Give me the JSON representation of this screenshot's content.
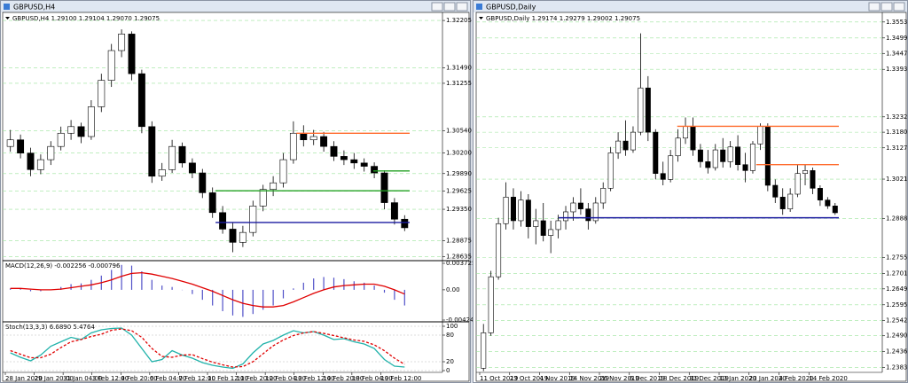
{
  "windows": [
    {
      "title": "GBPUSD,H4",
      "info": "GBPUSD,H4  1.29100 1.29104 1.29070 1.29075",
      "chart_data": {
        "type": "candlestick",
        "candles": [
          [
            1.303,
            1.3055,
            1.3022,
            1.304
          ],
          [
            1.304,
            1.3048,
            1.3012,
            1.302
          ],
          [
            1.302,
            1.3028,
            1.2985,
            1.2995
          ],
          [
            1.2995,
            1.3018,
            1.2988,
            1.301
          ],
          [
            1.301,
            1.3038,
            1.3002,
            1.303
          ],
          [
            1.303,
            1.306,
            1.3024,
            1.305
          ],
          [
            1.305,
            1.307,
            1.304,
            1.306
          ],
          [
            1.306,
            1.3066,
            1.3035,
            1.3045
          ],
          [
            1.3045,
            1.31,
            1.304,
            1.309
          ],
          [
            1.309,
            1.314,
            1.3082,
            1.313
          ],
          [
            1.313,
            1.3185,
            1.312,
            1.3175
          ],
          [
            1.3175,
            1.3207,
            1.3165,
            1.32
          ],
          [
            1.32,
            1.3204,
            1.313,
            1.314
          ],
          [
            1.314,
            1.3146,
            1.305,
            1.306
          ],
          [
            1.306,
            1.3068,
            1.2975,
            1.2985
          ],
          [
            1.2985,
            1.3005,
            1.2978,
            1.2995
          ],
          [
            1.2995,
            1.304,
            1.299,
            1.303
          ],
          [
            1.303,
            1.3036,
            1.2998,
            1.3005
          ],
          [
            1.3005,
            1.3012,
            1.2982,
            1.299
          ],
          [
            1.299,
            1.2996,
            1.2952,
            1.296
          ],
          [
            1.296,
            1.2968,
            1.2922,
            1.293
          ],
          [
            1.293,
            1.294,
            1.2898,
            1.2905
          ],
          [
            1.2905,
            1.2915,
            1.287,
            1.2885
          ],
          [
            1.2885,
            1.291,
            1.2878,
            1.29
          ],
          [
            1.29,
            1.2948,
            1.2894,
            1.294
          ],
          [
            1.294,
            1.2972,
            1.2932,
            1.2965
          ],
          [
            1.2965,
            1.2985,
            1.2955,
            1.2975
          ],
          [
            1.2975,
            1.302,
            1.2968,
            1.301
          ],
          [
            1.301,
            1.3068,
            1.3004,
            1.305
          ],
          [
            1.305,
            1.3062,
            1.303,
            1.304
          ],
          [
            1.304,
            1.3055,
            1.3032,
            1.3045
          ],
          [
            1.3045,
            1.3052,
            1.3022,
            1.303
          ],
          [
            1.303,
            1.3038,
            1.3008,
            1.3015
          ],
          [
            1.3015,
            1.3024,
            1.3002,
            1.301
          ],
          [
            1.301,
            1.302,
            1.2996,
            1.3005
          ],
          [
            1.3005,
            1.3012,
            1.2992,
            1.3
          ],
          [
            1.3,
            1.3006,
            1.2982,
            1.299
          ],
          [
            1.299,
            1.2994,
            1.2935,
            1.2945
          ],
          [
            1.2945,
            1.2952,
            1.2912,
            1.292
          ],
          [
            1.292,
            1.2926,
            1.2902,
            1.2907
          ]
        ],
        "ylim": [
          1.286,
          1.323
        ],
        "yticks": [
          1.32205,
          {
            "value": 1.3149,
            "label": "1.31490"
          },
          1.31255,
          {
            "value": 1.3054,
            "label": "1.30540"
          },
          {
            "value": 1.302,
            "label": "1.30200"
          },
          {
            "value": 1.2989,
            "label": "1.29890"
          },
          1.29625,
          {
            "value": 1.2935,
            "label": "1.29350"
          },
          1.28875,
          1.28635
        ],
        "grid": true,
        "levels": [
          {
            "value": 1.305,
            "color": "#ff6a2b"
          },
          {
            "value": 1.2993,
            "color": "#22a022"
          },
          {
            "value": 1.2963,
            "color": "#22a022"
          },
          {
            "value": 1.2915,
            "color": "#1a1aa0"
          }
        ],
        "x_labels": [
          "28 Jan 2020",
          "29 Jan 20:00",
          "31 Jan 04:00",
          "3 Feb 12:00",
          "4 Feb 20:00",
          "6 Feb 04:00",
          "7 Feb 12:00",
          "10 Feb 12:00",
          "11 Feb 20:00",
          "12 Feb 04:00",
          "13 Feb 12:00",
          "14 Feb 20:00",
          "18 Feb 04:00",
          "19 Feb 12:00"
        ],
        "indicators": [
          {
            "type": "macd",
            "label": "MACD(12,26,9) -0.002256 -0.000796",
            "color": "#5050c8",
            "signal_color": "#e00000",
            "values": [
              0.0002,
              0.0001,
              -0.0002,
              -0.0002,
              0,
              0.0004,
              0.0008,
              0.0009,
              0.0014,
              0.002,
              0.0028,
              0.0035,
              0.0034,
              0.0026,
              0.0014,
              0.0006,
              0.0004,
              0,
              -0.0006,
              -0.0014,
              -0.0022,
              -0.003,
              -0.0036,
              -0.0038,
              -0.0034,
              -0.0028,
              -0.0022,
              -0.0012,
              0.0002,
              0.001,
              0.0016,
              0.0018,
              0.0017,
              0.0015,
              0.0012,
              0.001,
              0.0006,
              -0.0004,
              -0.0014,
              -0.0022
            ],
            "signal": [
              0.0002,
              0.0002,
              0.0001,
              0,
              0,
              0.0001,
              0.0003,
              0.0005,
              0.0007,
              0.001,
              0.0014,
              0.0019,
              0.0023,
              0.0024,
              0.0022,
              0.0019,
              0.0016,
              0.0012,
              0.0008,
              0.0003,
              -0.0002,
              -0.0008,
              -0.0014,
              -0.0019,
              -0.0022,
              -0.0024,
              -0.0024,
              -0.0022,
              -0.0017,
              -0.0011,
              -0.0005,
              0,
              0.0004,
              0.0006,
              0.0007,
              0.0008,
              0.0008,
              0.0005,
              0,
              -0.0006
            ],
            "ylim": [
              -0.004249,
              0.003725
            ],
            "yticks": [
              0.003725,
              {
                "value": 0,
                "label": "0.00"
              },
              -0.004249
            ]
          },
          {
            "type": "stochastic",
            "label": "Stoch(13,3,3) 6.6890 5.4764",
            "color": "#20b2aa",
            "signal_color": "#e00000",
            "values": [
              40,
              30,
              22,
              35,
              55,
              65,
              75,
              70,
              85,
              92,
              95,
              96,
              80,
              50,
              20,
              25,
              45,
              35,
              28,
              18,
              12,
              8,
              5,
              15,
              40,
              60,
              68,
              80,
              90,
              85,
              88,
              80,
              70,
              72,
              65,
              60,
              50,
              25,
              10,
              8
            ],
            "signal": [
              45,
              37,
              29,
              29,
              37,
              52,
              65,
              70,
              77,
              82,
              91,
              94,
              90,
              75,
              50,
              32,
              30,
              35,
              36,
              27,
              19,
              13,
              8,
              9,
              20,
              38,
              56,
              69,
              79,
              85,
              88,
              84,
              79,
              74,
              69,
              66,
              58,
              45,
              28,
              14
            ],
            "ylim": [
              0,
              100
            ],
            "yticks": [
              100,
              80,
              20,
              0
            ]
          }
        ]
      }
    },
    {
      "title": "GBPUSD,Daily",
      "info": "GBPUSD,Daily  1.29174 1.29279 1.29002 1.29075",
      "chart_data": {
        "type": "candlestick",
        "candles": [
          [
            1.238,
            1.253,
            1.237,
            1.25
          ],
          [
            1.25,
            1.271,
            1.249,
            1.269
          ],
          [
            1.269,
            1.289,
            1.268,
            1.287
          ],
          [
            1.287,
            1.301,
            1.285,
            1.296
          ],
          [
            1.296,
            1.299,
            1.285,
            1.288
          ],
          [
            1.288,
            1.298,
            1.286,
            1.295
          ],
          [
            1.295,
            1.297,
            1.282,
            1.286
          ],
          [
            1.286,
            1.292,
            1.28,
            1.288
          ],
          [
            1.288,
            1.294,
            1.281,
            1.283
          ],
          [
            1.283,
            1.288,
            1.277,
            1.285
          ],
          [
            1.285,
            1.29,
            1.282,
            1.288
          ],
          [
            1.288,
            1.293,
            1.285,
            1.291
          ],
          [
            1.291,
            1.296,
            1.288,
            1.294
          ],
          [
            1.294,
            1.299,
            1.29,
            1.292
          ],
          [
            1.292,
            1.294,
            1.285,
            1.288
          ],
          [
            1.288,
            1.296,
            1.287,
            1.294
          ],
          [
            1.294,
            1.301,
            1.292,
            1.299
          ],
          [
            1.299,
            1.313,
            1.298,
            1.311
          ],
          [
            1.311,
            1.318,
            1.309,
            1.315
          ],
          [
            1.315,
            1.322,
            1.31,
            1.312
          ],
          [
            1.312,
            1.32,
            1.311,
            1.318
          ],
          [
            1.318,
            1.3515,
            1.317,
            1.333
          ],
          [
            1.333,
            1.337,
            1.315,
            1.318
          ],
          [
            1.318,
            1.319,
            1.302,
            1.304
          ],
          [
            1.304,
            1.308,
            1.3,
            1.302
          ],
          [
            1.302,
            1.312,
            1.301,
            1.31
          ],
          [
            1.31,
            1.319,
            1.308,
            1.316
          ],
          [
            1.316,
            1.323,
            1.314,
            1.32
          ],
          [
            1.32,
            1.323,
            1.31,
            1.312
          ],
          [
            1.312,
            1.314,
            1.306,
            1.308
          ],
          [
            1.308,
            1.312,
            1.304,
            1.306
          ],
          [
            1.306,
            1.314,
            1.305,
            1.312
          ],
          [
            1.312,
            1.316,
            1.306,
            1.308
          ],
          [
            1.308,
            1.315,
            1.306,
            1.313
          ],
          [
            1.313,
            1.317,
            1.305,
            1.307
          ],
          [
            1.307,
            1.311,
            1.301,
            1.305
          ],
          [
            1.305,
            1.315,
            1.304,
            1.314
          ],
          [
            1.314,
            1.321,
            1.312,
            1.32
          ],
          [
            1.32,
            1.321,
            1.298,
            1.3
          ],
          [
            1.3,
            1.302,
            1.294,
            1.296
          ],
          [
            1.296,
            1.299,
            1.29,
            1.292
          ],
          [
            1.292,
            1.299,
            1.291,
            1.297
          ],
          [
            1.297,
            1.307,
            1.296,
            1.304
          ],
          [
            1.304,
            1.307,
            1.3,
            1.305
          ],
          [
            1.305,
            1.306,
            1.297,
            1.299
          ],
          [
            1.299,
            1.3,
            1.293,
            1.295
          ],
          [
            1.295,
            1.296,
            1.292,
            1.293
          ],
          [
            1.293,
            1.294,
            1.29,
            1.2907
          ]
        ],
        "ylim": [
          1.2366,
          1.358
        ],
        "yticks": [
          1.35535,
          1.34995,
          {
            "value": 1.3447,
            "label": "1.34470"
          },
          {
            "value": 1.3393,
            "label": "1.33930"
          },
          {
            "value": 1.3232,
            "label": "1.32320"
          },
          {
            "value": 1.318,
            "label": "1.31800"
          },
          {
            "value": 1.3127,
            "label": "1.31270"
          },
          {
            "value": 1.3021,
            "label": "1.30210"
          },
          {
            "value": 1.2888,
            "label": "1.28880"
          },
          1.27555,
          1.27015,
          {
            "value": 1.2649,
            "label": "1.26490"
          },
          {
            "value": 1.2595,
            "label": "1.25950"
          },
          {
            "value": 1.2542,
            "label": "1.25420"
          },
          {
            "value": 1.249,
            "label": "1.24900"
          },
          {
            "value": 1.2436,
            "label": "1.24360"
          },
          {
            "value": 1.2383,
            "label": "1.23830"
          }
        ],
        "grid": true,
        "levels": [
          {
            "value": 1.32,
            "color": "#ff6a2b"
          },
          {
            "value": 1.307,
            "color": "#ff6a2b"
          },
          {
            "value": 1.289,
            "color": "#1a1aa0"
          }
        ],
        "x_labels": [
          "11 Oct 2019",
          "23 Oct 2019",
          "4 Nov 2019",
          "14 Nov 2019",
          "26 Nov 2019",
          "6 Dec 2019",
          "18 Dec 2019",
          "31 Dec 2019",
          "13 Jan 2020",
          "23 Jan 2020",
          "4 Feb 2020",
          "14 Feb 2020"
        ]
      }
    }
  ]
}
